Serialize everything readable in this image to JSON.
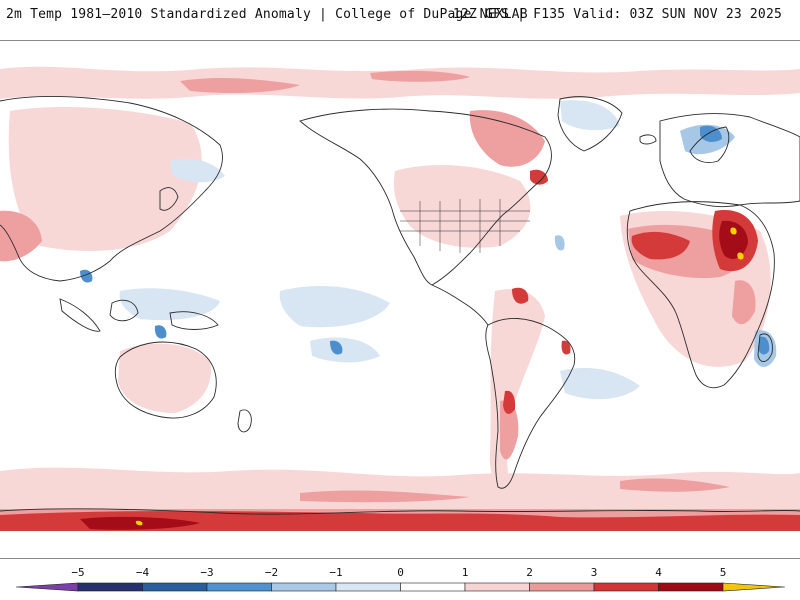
{
  "header": {
    "title_left": "2m Temp 1981–2010 Standardized Anomaly | College of DuPage NEXLAB",
    "title_right": "12Z GFS | F135 Valid: 03Z SUN NOV 23 2025"
  },
  "colorbar": {
    "tick_labels": [
      "−5",
      "−4",
      "−3",
      "−2",
      "−1",
      "0",
      "1",
      "2",
      "3",
      "4",
      "5"
    ],
    "colors": {
      "lt5": "#7b3fa8",
      "m5_m4": "#26326e",
      "m4_m3": "#2a5f9e",
      "m3_m2": "#4f92cf",
      "m2_m1": "#a9c9e7",
      "m1_0": "#d9e7f4",
      "p0_1": "#ffffff",
      "p1_2": "#f7d3d3",
      "p2_3": "#eb9a9a",
      "p3_4": "#d33535",
      "p4_5": "#9e0a14",
      "gt5": "#f1c40f"
    }
  },
  "map": {
    "colors": {
      "land_outline": "#2b2b2b",
      "warm_light": "#f8d7d7",
      "warm_mid": "#ee9f9f",
      "warm_strong": "#d53a3a",
      "warm_extreme": "#a40c18",
      "yellow": "#f4d000",
      "cool_light": "#d8e6f4",
      "cool_mid": "#a7c7e6",
      "cool_strong": "#4d8fcd",
      "cool_extreme": "#2a5f9e"
    }
  }
}
